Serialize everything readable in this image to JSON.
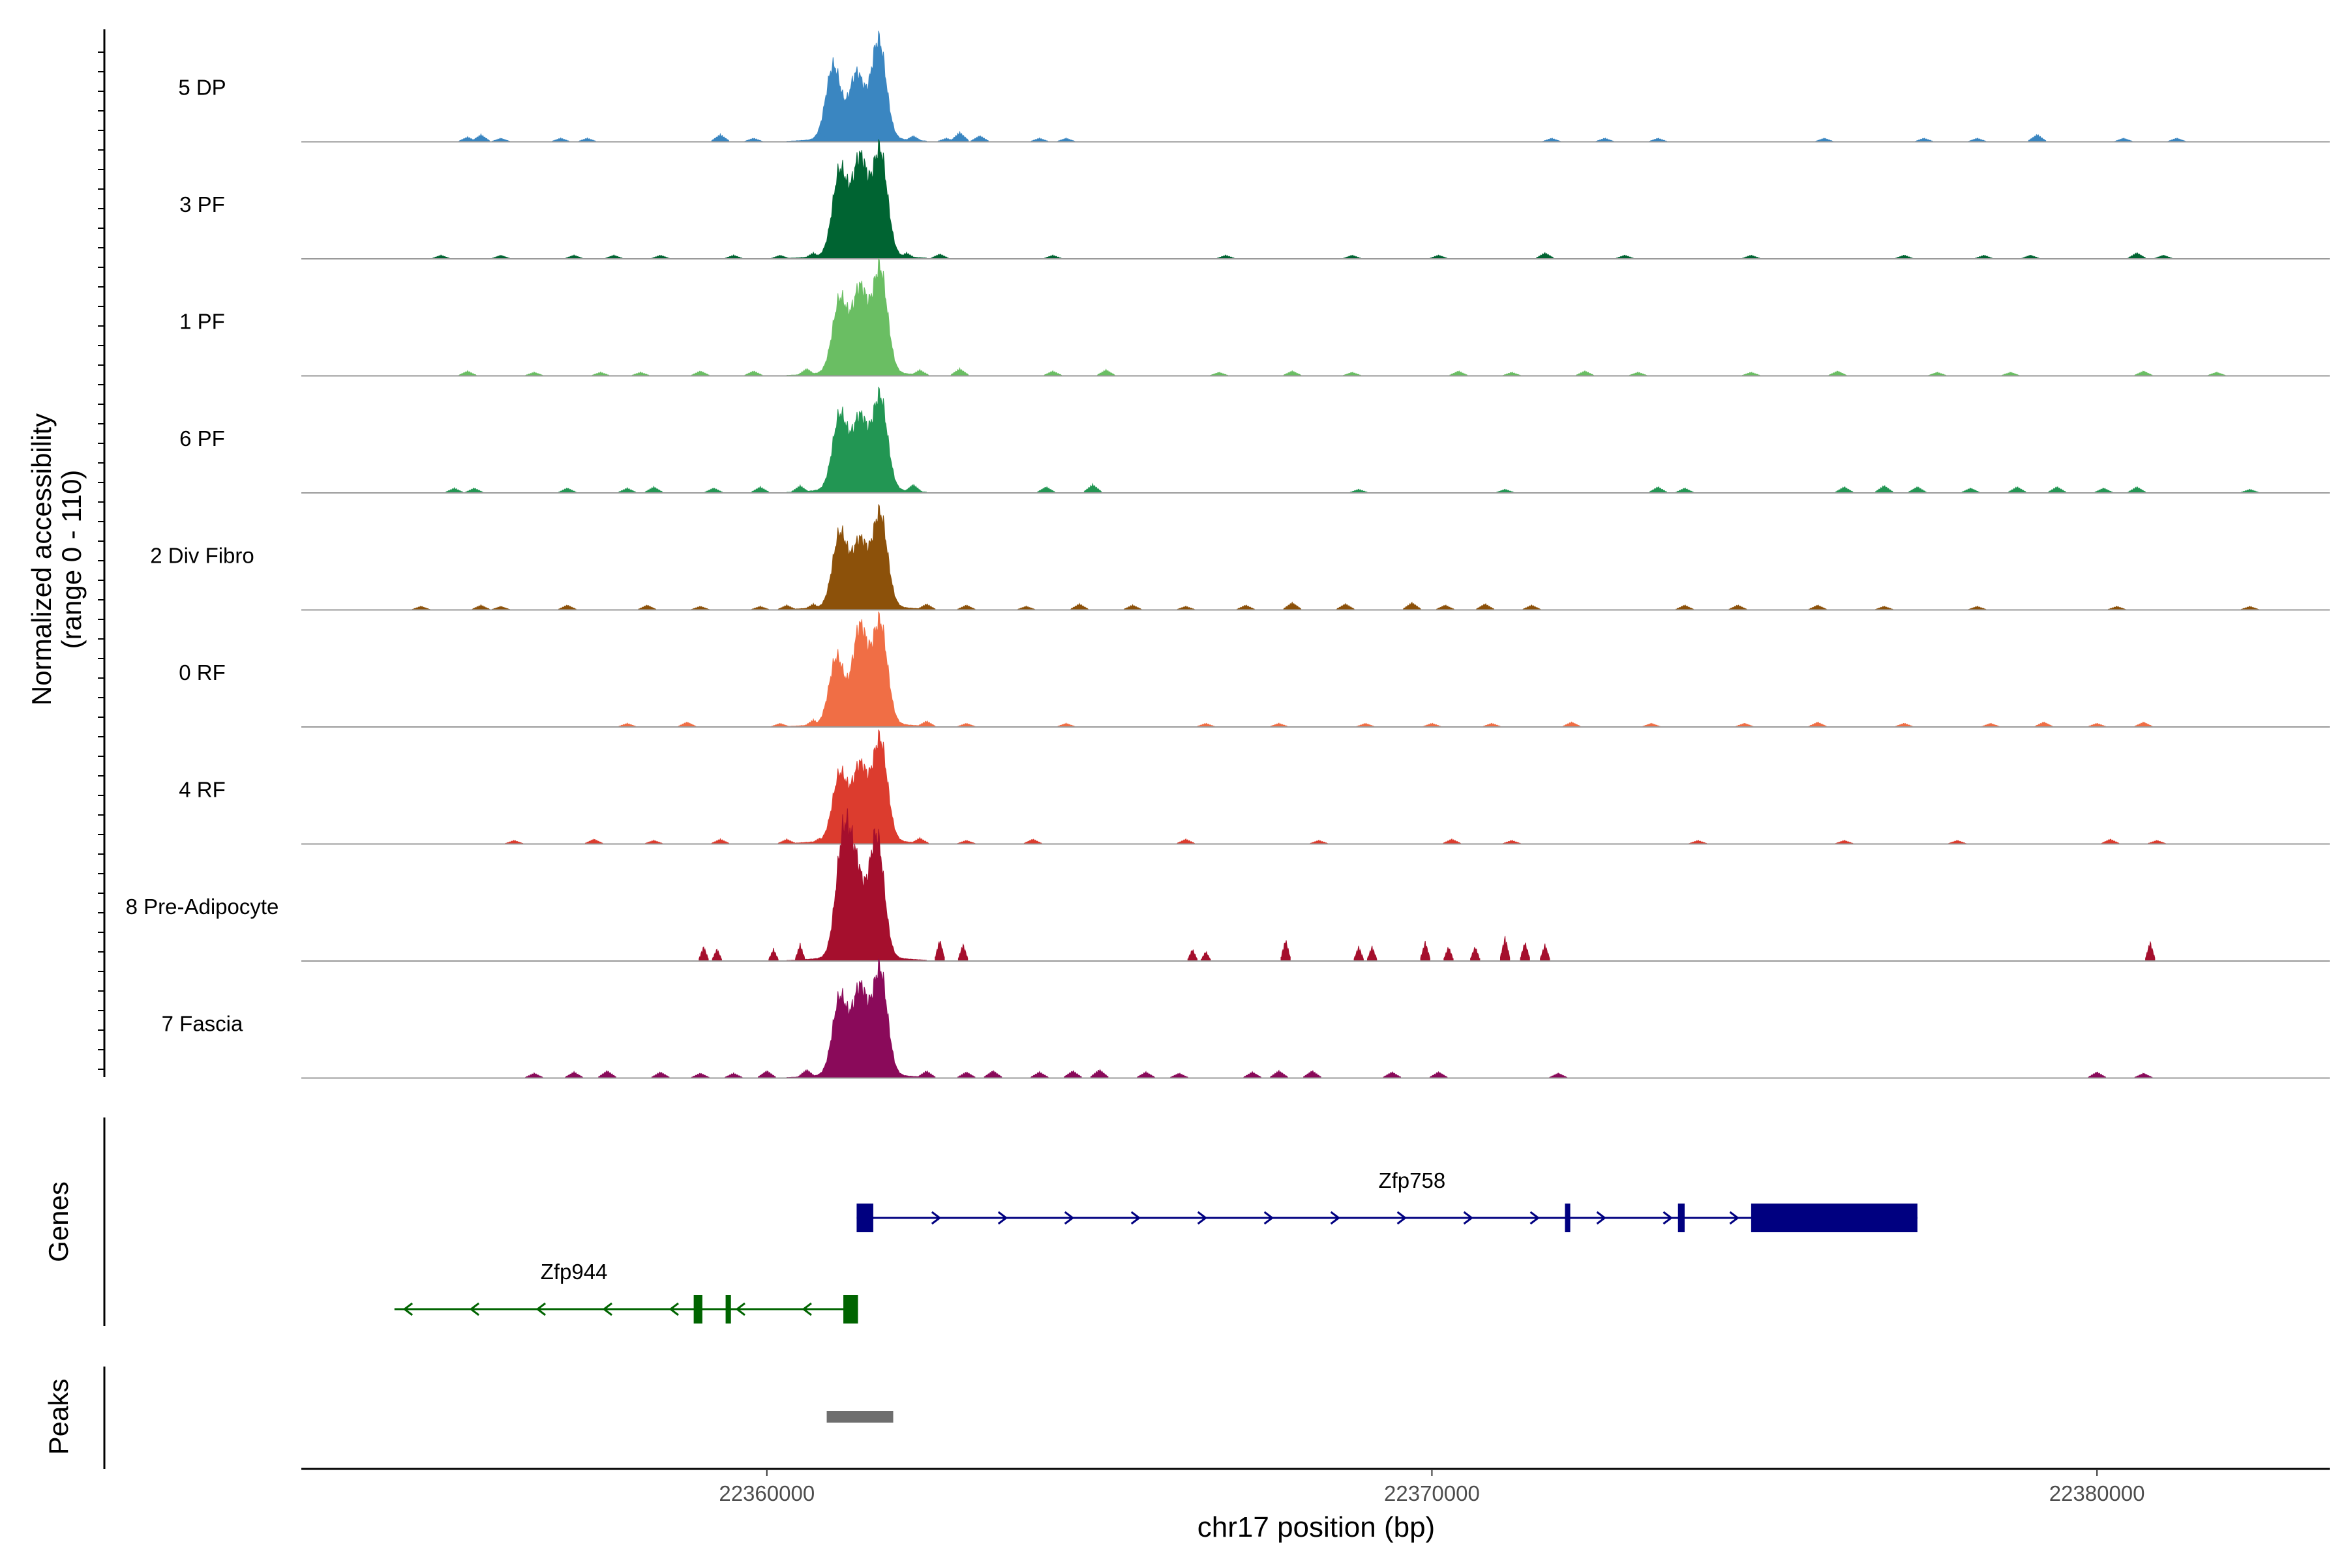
{
  "chart_data": {
    "type": "area",
    "title": "",
    "ylabel": "Normalized accessibility",
    "ylabel_range": "(range 0 - 110)",
    "ylim": [
      0,
      110
    ],
    "xlabel": "chr17 position (bp)",
    "xlim": [
      22353000,
      22383500
    ],
    "x_ticks": [
      22360000,
      22370000,
      22380000
    ],
    "x_tick_labels": [
      "22360000",
      "22370000",
      "22380000"
    ],
    "series": [
      {
        "name": "5 DP",
        "color": "#3a86c1",
        "peaks": [
          [
            22361000,
            55
          ],
          [
            22361350,
            48
          ],
          [
            22361680,
            74
          ]
        ],
        "background": [
          [
            22355500,
            4
          ],
          [
            22355700,
            6
          ],
          [
            22356000,
            3
          ],
          [
            22356900,
            3
          ],
          [
            22357300,
            3
          ],
          [
            22359300,
            6
          ],
          [
            22359800,
            3
          ],
          [
            22360800,
            7
          ],
          [
            22362200,
            5
          ],
          [
            22362700,
            3
          ],
          [
            22362900,
            8
          ],
          [
            22363200,
            5
          ],
          [
            22364100,
            3
          ],
          [
            22364500,
            3
          ],
          [
            22371800,
            3
          ],
          [
            22372600,
            3
          ],
          [
            22373400,
            3
          ],
          [
            22375900,
            3
          ],
          [
            22377400,
            3
          ],
          [
            22378200,
            3
          ],
          [
            22379100,
            6
          ],
          [
            22380400,
            3
          ],
          [
            22381200,
            3
          ]
        ]
      },
      {
        "name": "3 PF",
        "color": "#006432",
        "peaks": [
          [
            22361100,
            64
          ],
          [
            22361400,
            72
          ],
          [
            22361700,
            79
          ]
        ],
        "background": [
          [
            22355100,
            3
          ],
          [
            22356000,
            3
          ],
          [
            22357100,
            3
          ],
          [
            22357700,
            3
          ],
          [
            22358400,
            3
          ],
          [
            22359500,
            3
          ],
          [
            22360200,
            3
          ],
          [
            22360700,
            5
          ],
          [
            22362100,
            5
          ],
          [
            22362600,
            4
          ],
          [
            22364300,
            3
          ],
          [
            22366900,
            3
          ],
          [
            22368800,
            3
          ],
          [
            22370100,
            3
          ],
          [
            22371700,
            5
          ],
          [
            22372900,
            3
          ],
          [
            22374800,
            3
          ],
          [
            22377100,
            3
          ],
          [
            22378300,
            3
          ],
          [
            22379000,
            3
          ],
          [
            22380600,
            5
          ],
          [
            22381000,
            3
          ]
        ]
      },
      {
        "name": "1 PF",
        "color": "#6abe63",
        "peaks": [
          [
            22361100,
            55
          ],
          [
            22361400,
            62
          ],
          [
            22361700,
            78
          ]
        ],
        "background": [
          [
            22355500,
            4
          ],
          [
            22356500,
            3
          ],
          [
            22357500,
            3
          ],
          [
            22358100,
            3
          ],
          [
            22359000,
            4
          ],
          [
            22359800,
            4
          ],
          [
            22360600,
            6
          ],
          [
            22362300,
            5
          ],
          [
            22362900,
            6
          ],
          [
            22364300,
            4
          ],
          [
            22365100,
            5
          ],
          [
            22366800,
            3
          ],
          [
            22367900,
            4
          ],
          [
            22368800,
            3
          ],
          [
            22370400,
            4
          ],
          [
            22371200,
            3
          ],
          [
            22372300,
            4
          ],
          [
            22373100,
            3
          ],
          [
            22374800,
            3
          ],
          [
            22376100,
            4
          ],
          [
            22377600,
            3
          ],
          [
            22378700,
            3
          ],
          [
            22380700,
            4
          ],
          [
            22381800,
            3
          ]
        ]
      },
      {
        "name": "6 PF",
        "color": "#229653",
        "peaks": [
          [
            22361100,
            56
          ],
          [
            22361400,
            53
          ],
          [
            22361700,
            70
          ]
        ],
        "background": [
          [
            22355300,
            4
          ],
          [
            22355600,
            4
          ],
          [
            22357000,
            4
          ],
          [
            22357900,
            4
          ],
          [
            22358300,
            5
          ],
          [
            22359200,
            4
          ],
          [
            22359900,
            5
          ],
          [
            22360500,
            6
          ],
          [
            22362200,
            7
          ],
          [
            22364200,
            5
          ],
          [
            22364900,
            7
          ],
          [
            22368900,
            3
          ],
          [
            22371100,
            3
          ],
          [
            22373400,
            5
          ],
          [
            22373800,
            4
          ],
          [
            22376200,
            5
          ],
          [
            22376800,
            6
          ],
          [
            22377300,
            5
          ],
          [
            22378100,
            4
          ],
          [
            22378800,
            5
          ],
          [
            22379400,
            5
          ],
          [
            22380100,
            4
          ],
          [
            22380600,
            5
          ],
          [
            22382300,
            3
          ]
        ]
      },
      {
        "name": "2 Div Fibro",
        "color": "#8c510a",
        "peaks": [
          [
            22361100,
            55
          ],
          [
            22361400,
            48
          ],
          [
            22361700,
            70
          ]
        ],
        "background": [
          [
            22354800,
            3
          ],
          [
            22355700,
            4
          ],
          [
            22356000,
            3
          ],
          [
            22357000,
            4
          ],
          [
            22358200,
            4
          ],
          [
            22359000,
            3
          ],
          [
            22359900,
            3
          ],
          [
            22360300,
            4
          ],
          [
            22360700,
            5
          ],
          [
            22362400,
            5
          ],
          [
            22363000,
            4
          ],
          [
            22363900,
            3
          ],
          [
            22364700,
            5
          ],
          [
            22365500,
            4
          ],
          [
            22366300,
            3
          ],
          [
            22367200,
            4
          ],
          [
            22367900,
            6
          ],
          [
            22368700,
            5
          ],
          [
            22369700,
            6
          ],
          [
            22370200,
            4
          ],
          [
            22370800,
            5
          ],
          [
            22371500,
            4
          ],
          [
            22373800,
            4
          ],
          [
            22374600,
            4
          ],
          [
            22375800,
            4
          ],
          [
            22376800,
            3
          ],
          [
            22378200,
            3
          ],
          [
            22380300,
            3
          ],
          [
            22382300,
            3
          ]
        ]
      },
      {
        "name": "0 RF",
        "color": "#f06e45",
        "peaks": [
          [
            22361050,
            50
          ],
          [
            22361400,
            72
          ],
          [
            22361700,
            76
          ]
        ],
        "background": [
          [
            22357900,
            3
          ],
          [
            22358800,
            4
          ],
          [
            22360200,
            3
          ],
          [
            22360700,
            6
          ],
          [
            22362400,
            5
          ],
          [
            22363000,
            3
          ],
          [
            22364500,
            3
          ],
          [
            22366600,
            3
          ],
          [
            22367700,
            3
          ],
          [
            22369000,
            3
          ],
          [
            22370000,
            3
          ],
          [
            22370900,
            3
          ],
          [
            22372100,
            4
          ],
          [
            22373300,
            3
          ],
          [
            22374700,
            3
          ],
          [
            22375800,
            4
          ],
          [
            22377100,
            3
          ],
          [
            22378400,
            3
          ],
          [
            22379200,
            4
          ],
          [
            22380000,
            3
          ],
          [
            22380700,
            4
          ]
        ]
      },
      {
        "name": "4 RF",
        "color": "#dc3c2e",
        "peaks": [
          [
            22361100,
            50
          ],
          [
            22361400,
            55
          ],
          [
            22361700,
            76
          ]
        ],
        "background": [
          [
            22356200,
            3
          ],
          [
            22357400,
            4
          ],
          [
            22358300,
            3
          ],
          [
            22359300,
            4
          ],
          [
            22360300,
            4
          ],
          [
            22360800,
            5
          ],
          [
            22362300,
            5
          ],
          [
            22363000,
            3
          ],
          [
            22364000,
            4
          ],
          [
            22366300,
            4
          ],
          [
            22368300,
            3
          ],
          [
            22370300,
            4
          ],
          [
            22371200,
            3
          ],
          [
            22374000,
            3
          ],
          [
            22376200,
            3
          ],
          [
            22377900,
            3
          ],
          [
            22380200,
            4
          ],
          [
            22380900,
            3
          ]
        ]
      },
      {
        "name": "8 Pre-Adipocyte",
        "color": "#a50f2d",
        "peaks": [
          [
            22361150,
            88
          ],
          [
            22361350,
            58
          ],
          [
            22361650,
            92
          ]
        ],
        "background": [
          [
            22359050,
            12
          ],
          [
            22359250,
            10
          ],
          [
            22360100,
            10
          ],
          [
            22360500,
            14
          ],
          [
            22362600,
            18
          ],
          [
            22362950,
            14
          ],
          [
            22366400,
            10
          ],
          [
            22366600,
            8
          ],
          [
            22367800,
            18
          ],
          [
            22368900,
            12
          ],
          [
            22369100,
            12
          ],
          [
            22369900,
            16
          ],
          [
            22370250,
            12
          ],
          [
            22370650,
            12
          ],
          [
            22371100,
            20
          ],
          [
            22371400,
            16
          ],
          [
            22371700,
            14
          ],
          [
            22380800,
            16
          ]
        ]
      },
      {
        "name": "7 Fascia",
        "color": "#8a0a5a",
        "peaks": [
          [
            22361100,
            58
          ],
          [
            22361400,
            64
          ],
          [
            22361700,
            79
          ]
        ],
        "background": [
          [
            22356500,
            4
          ],
          [
            22357100,
            5
          ],
          [
            22357600,
            6
          ],
          [
            22358400,
            5
          ],
          [
            22359000,
            4
          ],
          [
            22359500,
            4
          ],
          [
            22360000,
            6
          ],
          [
            22360600,
            7
          ],
          [
            22362400,
            6
          ],
          [
            22363000,
            5
          ],
          [
            22363400,
            6
          ],
          [
            22364100,
            5
          ],
          [
            22364600,
            6
          ],
          [
            22365000,
            7
          ],
          [
            22365700,
            5
          ],
          [
            22366200,
            4
          ],
          [
            22367300,
            5
          ],
          [
            22367700,
            6
          ],
          [
            22368200,
            6
          ],
          [
            22369400,
            5
          ],
          [
            22370100,
            5
          ],
          [
            22371900,
            4
          ],
          [
            22380000,
            5
          ],
          [
            22380700,
            4
          ]
        ]
      }
    ],
    "genes": [
      {
        "name": "Zfp758",
        "strand": "+",
        "color": "#000080",
        "start": 22361350,
        "end": 22377300,
        "exons": [
          [
            22361350,
            22361600
          ],
          [
            22372000,
            22372080
          ],
          [
            22373700,
            22373800
          ],
          [
            22374800,
            22377300
          ]
        ]
      },
      {
        "name": "Zfp944",
        "strand": "-",
        "color": "#006400",
        "start": 22354400,
        "end": 22361370,
        "exons": [
          [
            22358900,
            22359030
          ],
          [
            22359380,
            22359460
          ],
          [
            22361150,
            22361370
          ]
        ]
      }
    ],
    "peak_regions": [
      {
        "start": 22360900,
        "end": 22361900,
        "color": "#6e6e6e"
      }
    ],
    "track_labels": {
      "genes": "Genes",
      "peaks": "Peaks"
    }
  }
}
